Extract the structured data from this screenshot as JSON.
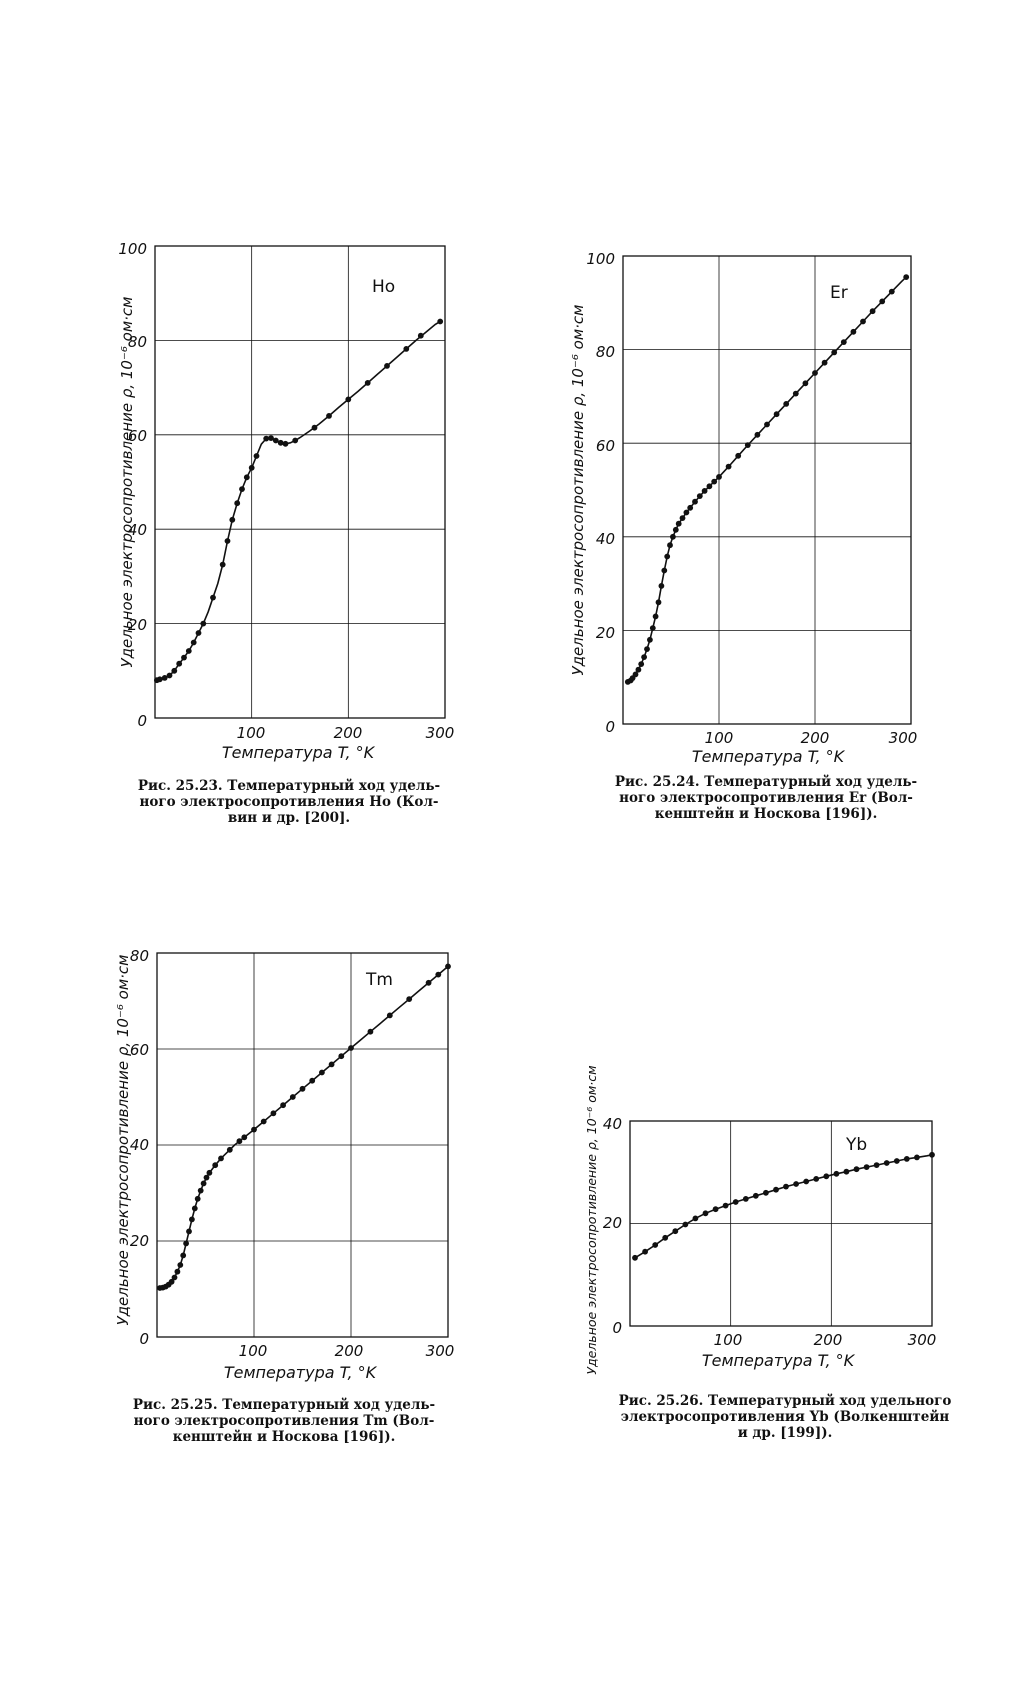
{
  "charts": [
    {
      "element": "Ho",
      "caption": [
        "Рис. 25.23. Температурный ход удель-",
        "ного электросопротивления Ho (Кол-",
        "вин и др. [200]."
      ],
      "xlabel": "Температура T, °K",
      "ylabel": "Удельное электросопротивление ρ, 10⁻⁶ ом·см",
      "xticks": [
        "100",
        "200",
        "300"
      ],
      "yticks": [
        "0",
        "20",
        "40",
        "60",
        "80",
        "100"
      ]
    },
    {
      "element": "Er",
      "caption": [
        "Рис. 25.24. Температурный ход удель-",
        "ного электросопротивления Er (Вол-",
        "кенштейн и Носкова [196])."
      ],
      "xlabel": "Температура T, °K",
      "ylabel": "Удельное электросопротивление ρ, 10⁻⁶ ом·см",
      "xticks": [
        "100",
        "200",
        "300"
      ],
      "yticks": [
        "0",
        "20",
        "40",
        "60",
        "80",
        "100"
      ]
    },
    {
      "element": "Tm",
      "caption": [
        "Рис. 25.25. Температурный ход удель-",
        "ного электросопротивления Tm (Вол-",
        "кенштейн и Носкова [196])."
      ],
      "xlabel": "Температура T, °K",
      "ylabel": "Удельное электросопротивление ρ, 10⁻⁶ ом·см",
      "xticks": [
        "100",
        "200",
        "300"
      ],
      "yticks": [
        "0",
        "20",
        "40",
        "60",
        "80"
      ]
    },
    {
      "element": "Yb",
      "caption": [
        "Рис. 25.26. Температурный ход удельного",
        "электросопротивления Yb (Волкенштейн",
        "и др. [199])."
      ],
      "xlabel": "Температура T, °K",
      "ylabel": "Удельное электросопротивление ρ, 10⁻⁶ ом·см",
      "xticks": [
        "100",
        "200",
        "300"
      ],
      "yticks": [
        "0",
        "20",
        "40"
      ]
    }
  ],
  "chart_data": [
    {
      "type": "line",
      "series": [
        {
          "name": "Ho",
          "x": [
            2,
            5,
            8,
            10,
            15,
            20,
            25,
            30,
            35,
            40,
            45,
            50,
            55,
            60,
            65,
            70,
            75,
            80,
            85,
            90,
            95,
            100,
            105,
            110,
            115,
            120,
            125,
            130,
            135,
            140,
            145,
            150,
            160,
            170,
            180,
            190,
            200,
            210,
            220,
            230,
            240,
            250,
            260,
            270,
            280,
            290,
            295
          ],
          "y": [
            8.0,
            8.2,
            8.4,
            8.5,
            9.0,
            10.0,
            11.5,
            12.8,
            14.2,
            16.0,
            18.0,
            20.0,
            22.5,
            25.5,
            28.5,
            32.5,
            37.5,
            42.0,
            45.5,
            48.5,
            51.0,
            53.0,
            55.5,
            58.0,
            59.2,
            59.3,
            58.8,
            58.3,
            58.1,
            58.3,
            58.8,
            59.4,
            60.8,
            62.3,
            64.0,
            65.8,
            67.5,
            69.2,
            71.0,
            72.8,
            74.6,
            76.4,
            78.2,
            80.0,
            81.7,
            83.4,
            84.0
          ],
          "markers": [
            [
              2,
              8
            ],
            [
              5,
              8.2
            ],
            [
              10,
              8.5
            ],
            [
              15,
              9
            ],
            [
              20,
              10
            ],
            [
              25,
              11.5
            ],
            [
              30,
              12.8
            ],
            [
              35,
              14.2
            ],
            [
              40,
              16
            ],
            [
              45,
              18
            ],
            [
              50,
              20
            ],
            [
              60,
              25.5
            ],
            [
              70,
              32.5
            ],
            [
              75,
              37.5
            ],
            [
              80,
              42
            ],
            [
              85,
              45.5
            ],
            [
              90,
              48.5
            ],
            [
              95,
              51
            ],
            [
              100,
              53
            ],
            [
              105,
              55.5
            ],
            [
              115,
              59.2
            ],
            [
              120,
              59.3
            ],
            [
              125,
              58.8
            ],
            [
              130,
              58.3
            ],
            [
              135,
              58.1
            ],
            [
              145,
              58.8
            ],
            [
              165,
              61.5
            ],
            [
              180,
              64
            ],
            [
              200,
              67.5
            ],
            [
              220,
              71
            ],
            [
              240,
              74.6
            ],
            [
              260,
              78.2
            ],
            [
              275,
              81
            ],
            [
              295,
              84
            ]
          ]
        }
      ],
      "xlim": [
        0,
        300
      ],
      "ylim": [
        0,
        100
      ]
    },
    {
      "type": "line",
      "series": [
        {
          "name": "Er",
          "x": [
            5,
            8,
            10,
            13,
            16,
            19,
            22,
            25,
            28,
            31,
            34,
            37,
            40,
            43,
            46,
            49,
            52,
            55,
            58,
            62,
            66,
            70,
            75,
            80,
            85,
            90,
            95,
            100,
            110,
            120,
            130,
            140,
            150,
            160,
            170,
            180,
            190,
            200,
            210,
            220,
            230,
            240,
            250,
            260,
            270,
            280,
            290,
            295
          ],
          "y": [
            9.0,
            9.3,
            9.8,
            10.6,
            11.6,
            12.8,
            14.3,
            16.0,
            18.0,
            20.5,
            23.0,
            26.0,
            29.5,
            32.8,
            35.8,
            38.2,
            40.0,
            41.5,
            42.8,
            44.0,
            45.2,
            46.2,
            47.5,
            48.7,
            49.8,
            50.8,
            51.8,
            52.8,
            55.0,
            57.3,
            59.6,
            61.8,
            64.0,
            66.2,
            68.4,
            70.6,
            72.8,
            75.0,
            77.2,
            79.4,
            81.6,
            83.8,
            86.0,
            88.2,
            90.3,
            92.4,
            94.5,
            95.5
          ],
          "markers": [
            [
              5,
              9
            ],
            [
              8,
              9.3
            ],
            [
              10,
              9.8
            ],
            [
              13,
              10.6
            ],
            [
              16,
              11.6
            ],
            [
              19,
              12.8
            ],
            [
              22,
              14.3
            ],
            [
              25,
              16
            ],
            [
              28,
              18
            ],
            [
              31,
              20.5
            ],
            [
              34,
              23
            ],
            [
              37,
              26
            ],
            [
              40,
              29.5
            ],
            [
              43,
              32.8
            ],
            [
              46,
              35.8
            ],
            [
              49,
              38.2
            ],
            [
              52,
              40
            ],
            [
              55,
              41.5
            ],
            [
              58,
              42.8
            ],
            [
              62,
              44
            ],
            [
              66,
              45.2
            ],
            [
              70,
              46.2
            ],
            [
              75,
              47.5
            ],
            [
              80,
              48.7
            ],
            [
              85,
              49.8
            ],
            [
              90,
              50.8
            ],
            [
              95,
              51.8
            ],
            [
              100,
              52.8
            ],
            [
              110,
              55
            ],
            [
              120,
              57.3
            ],
            [
              130,
              59.6
            ],
            [
              140,
              61.8
            ],
            [
              150,
              64
            ],
            [
              160,
              66.2
            ],
            [
              170,
              68.4
            ],
            [
              180,
              70.6
            ],
            [
              190,
              72.8
            ],
            [
              200,
              75
            ],
            [
              210,
              77.2
            ],
            [
              220,
              79.4
            ],
            [
              230,
              81.6
            ],
            [
              240,
              83.8
            ],
            [
              250,
              86
            ],
            [
              260,
              88.2
            ],
            [
              270,
              90.3
            ],
            [
              280,
              92.4
            ],
            [
              295,
              95.5
            ]
          ]
        }
      ],
      "xlim": [
        0,
        300
      ],
      "ylim": [
        0,
        100
      ]
    },
    {
      "type": "line",
      "series": [
        {
          "name": "Tm",
          "x": [
            3,
            6,
            9,
            12,
            15,
            18,
            21,
            24,
            27,
            30,
            33,
            36,
            39,
            42,
            45,
            48,
            51,
            54,
            57,
            60,
            63,
            66,
            70,
            75,
            80,
            85,
            90,
            100,
            110,
            120,
            130,
            140,
            150,
            160,
            170,
            180,
            190,
            200,
            210,
            220,
            230,
            240,
            250,
            260,
            270,
            280,
            290,
            300
          ],
          "y": [
            10.2,
            10.3,
            10.5,
            10.9,
            11.5,
            12.4,
            13.6,
            15.0,
            17.0,
            19.5,
            22.0,
            24.5,
            26.8,
            28.8,
            30.5,
            32.0,
            33.2,
            34.2,
            35.0,
            35.8,
            36.5,
            37.2,
            38.0,
            39.0,
            40.0,
            40.8,
            41.6,
            43.2,
            44.9,
            46.6,
            48.3,
            50.0,
            51.7,
            53.4,
            55.1,
            56.8,
            58.5,
            60.2,
            61.9,
            63.6,
            65.3,
            67.0,
            68.7,
            70.4,
            72.1,
            73.8,
            75.5,
            77.2
          ],
          "markers": [
            [
              3,
              10.2
            ],
            [
              6,
              10.3
            ],
            [
              9,
              10.5
            ],
            [
              12,
              10.9
            ],
            [
              15,
              11.5
            ],
            [
              18,
              12.4
            ],
            [
              21,
              13.6
            ],
            [
              24,
              15
            ],
            [
              27,
              17
            ],
            [
              30,
              19.5
            ],
            [
              33,
              22
            ],
            [
              36,
              24.5
            ],
            [
              39,
              26.8
            ],
            [
              42,
              28.8
            ],
            [
              45,
              30.5
            ],
            [
              48,
              32
            ],
            [
              51,
              33.2
            ],
            [
              54,
              34.2
            ],
            [
              60,
              35.8
            ],
            [
              66,
              37.2
            ],
            [
              75,
              39
            ],
            [
              85,
              40.8
            ],
            [
              90,
              41.6
            ],
            [
              100,
              43.2
            ],
            [
              110,
              44.9
            ],
            [
              120,
              46.6
            ],
            [
              130,
              48.3
            ],
            [
              140,
              50
            ],
            [
              150,
              51.7
            ],
            [
              160,
              53.4
            ],
            [
              170,
              55.1
            ],
            [
              180,
              56.8
            ],
            [
              190,
              58.5
            ],
            [
              200,
              60.2
            ],
            [
              220,
              63.6
            ],
            [
              240,
              67
            ],
            [
              260,
              70.4
            ],
            [
              280,
              73.8
            ],
            [
              290,
              75.5
            ],
            [
              300,
              77.2
            ]
          ]
        }
      ],
      "xlim": [
        0,
        300
      ],
      "ylim": [
        0,
        80
      ]
    },
    {
      "type": "line",
      "series": [
        {
          "name": "Yb",
          "x": [
            5,
            15,
            25,
            35,
            45,
            55,
            65,
            75,
            85,
            95,
            105,
            115,
            125,
            135,
            145,
            155,
            165,
            175,
            185,
            195,
            205,
            215,
            225,
            235,
            245,
            255,
            265,
            275,
            285,
            295,
            300
          ],
          "y": [
            13.3,
            14.5,
            15.8,
            17.2,
            18.5,
            19.8,
            21.0,
            22.0,
            22.8,
            23.5,
            24.2,
            24.8,
            25.4,
            26.0,
            26.6,
            27.2,
            27.7,
            28.2,
            28.7,
            29.2,
            29.7,
            30.1,
            30.6,
            31.0,
            31.4,
            31.8,
            32.2,
            32.6,
            32.9,
            33.2,
            33.4
          ],
          "markers": [
            [
              5,
              13.3
            ],
            [
              15,
              14.5
            ],
            [
              25,
              15.8
            ],
            [
              35,
              17.2
            ],
            [
              45,
              18.5
            ],
            [
              55,
              19.8
            ],
            [
              65,
              21
            ],
            [
              75,
              22
            ],
            [
              85,
              22.8
            ],
            [
              95,
              23.5
            ],
            [
              105,
              24.2
            ],
            [
              115,
              24.8
            ],
            [
              125,
              25.4
            ],
            [
              135,
              26
            ],
            [
              145,
              26.6
            ],
            [
              155,
              27.2
            ],
            [
              165,
              27.7
            ],
            [
              175,
              28.2
            ],
            [
              185,
              28.7
            ],
            [
              195,
              29.2
            ],
            [
              205,
              29.7
            ],
            [
              215,
              30.1
            ],
            [
              225,
              30.6
            ],
            [
              235,
              31
            ],
            [
              245,
              31.4
            ],
            [
              255,
              31.8
            ],
            [
              265,
              32.2
            ],
            [
              275,
              32.6
            ],
            [
              285,
              32.9
            ],
            [
              300,
              33.4
            ]
          ]
        }
      ],
      "xlim": [
        0,
        300
      ],
      "ylim": [
        0,
        40
      ]
    }
  ]
}
